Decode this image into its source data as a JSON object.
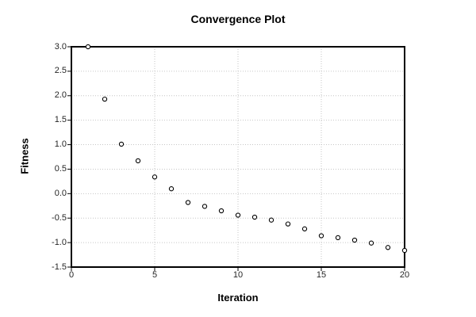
{
  "chart_data": {
    "type": "scatter",
    "title": "Convergence Plot",
    "xlabel": "Iteration",
    "ylabel": "Fitness",
    "x": [
      1,
      2,
      3,
      4,
      5,
      6,
      7,
      8,
      9,
      10,
      11,
      12,
      13,
      14,
      15,
      16,
      17,
      18,
      19,
      20
    ],
    "y": [
      3.0,
      1.93,
      1.01,
      0.67,
      0.34,
      0.1,
      -0.18,
      -0.26,
      -0.35,
      -0.44,
      -0.48,
      -0.54,
      -0.62,
      -0.72,
      -0.86,
      -0.9,
      -0.95,
      -1.01,
      -1.1,
      -1.16
    ],
    "xlim": [
      0,
      20
    ],
    "ylim": [
      -1.5,
      3.0
    ],
    "xticks": [
      0,
      5,
      10,
      15,
      20
    ],
    "yticks": [
      3.0,
      2.5,
      2.0,
      1.5,
      1.0,
      0.5,
      0.0,
      -0.5,
      -1.0,
      -1.5
    ],
    "xtick_labels": [
      "0",
      "5",
      "10",
      "15",
      "20"
    ],
    "ytick_labels": [
      "3.0",
      "2.5",
      "2.0",
      "1.5",
      "1.0",
      "0.5",
      "0.0",
      "-0.5",
      "-1.0",
      "-1.5"
    ],
    "grid": "dotted",
    "legend": "none",
    "marker": "open-circle",
    "colors": {
      "background": "#ffffff",
      "frame": "#000000",
      "grid": "#c6c6c6",
      "marker_stroke": "#000000",
      "marker_fill": "#ffffff",
      "text": "#000000",
      "tick_text": "#262626"
    }
  }
}
